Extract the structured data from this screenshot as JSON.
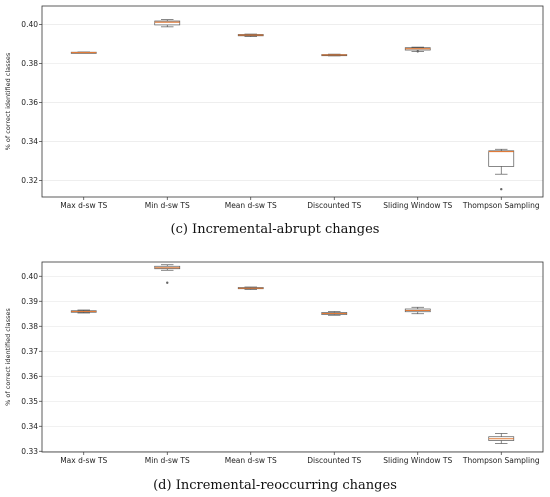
{
  "panels": [
    {
      "caption": "(c) Incremental-abrupt changes",
      "ylabel": "% of correct identified classes",
      "yticks": [
        "0.32",
        "0.34",
        "0.36",
        "0.38",
        "0.40"
      ],
      "ytick_values": [
        0.32,
        0.34,
        0.36,
        0.38,
        0.4
      ],
      "categories": [
        "Max d-sw TS",
        "Min d-sw TS",
        "Mean d-sw TS",
        "Discounted TS",
        "Sliding Window TS",
        "Thompson Sampling"
      ]
    },
    {
      "caption": "(d) Incremental-reoccurring changes",
      "ylabel": "% of correct identified classes",
      "yticks": [
        "0.33",
        "0.34",
        "0.35",
        "0.36",
        "0.37",
        "0.38",
        "0.39",
        "0.40"
      ],
      "ytick_values": [
        0.33,
        0.34,
        0.35,
        0.36,
        0.37,
        0.38,
        0.39,
        0.4
      ],
      "categories": [
        "Max d-sw TS",
        "Min d-sw TS",
        "Mean d-sw TS",
        "Discounted TS",
        "Sliding Window TS",
        "Thompson Sampling"
      ]
    }
  ],
  "colors": {
    "median": "#e07b39",
    "box": "#555555",
    "grid": "#e3e3e3"
  },
  "chart_data": [
    {
      "type": "box",
      "title": "(c) Incremental-abrupt changes",
      "xlabel": "",
      "ylabel": "% of correct identified classes",
      "ylim": [
        0.3115,
        0.4095
      ],
      "grid": true,
      "categories": [
        "Max d-sw TS",
        "Min d-sw TS",
        "Mean d-sw TS",
        "Discounted TS",
        "Sliding Window TS",
        "Thompson Sampling"
      ],
      "boxes": [
        {
          "whislo": 0.3853,
          "q1": 0.3855,
          "med": 0.3856,
          "q3": 0.3858,
          "whishi": 0.3859,
          "fliers": []
        },
        {
          "whislo": 0.3988,
          "q1": 0.3998,
          "med": 0.4012,
          "q3": 0.4018,
          "whishi": 0.4025,
          "fliers": []
        },
        {
          "whislo": 0.3938,
          "q1": 0.3942,
          "med": 0.3946,
          "q3": 0.3949,
          "whishi": 0.3951,
          "fliers": []
        },
        {
          "whislo": 0.3839,
          "q1": 0.3842,
          "med": 0.3844,
          "q3": 0.3846,
          "whishi": 0.3848,
          "fliers": []
        },
        {
          "whislo": 0.3862,
          "q1": 0.3869,
          "med": 0.3876,
          "q3": 0.3881,
          "whishi": 0.3884,
          "fliers": [
            0.3862
          ]
        },
        {
          "whislo": 0.3232,
          "q1": 0.3272,
          "med": 0.3348,
          "q3": 0.3352,
          "whishi": 0.336,
          "fliers": [
            0.3155
          ]
        }
      ]
    },
    {
      "type": "box",
      "title": "(d) Incremental-reoccurring changes",
      "xlabel": "",
      "ylabel": "% of correct identified classes",
      "ylim": [
        0.3297,
        0.4057
      ],
      "grid": true,
      "categories": [
        "Max d-sw TS",
        "Min d-sw TS",
        "Mean d-sw TS",
        "Discounted TS",
        "Sliding Window TS",
        "Thompson Sampling"
      ],
      "boxes": [
        {
          "whislo": 0.3853,
          "q1": 0.3856,
          "med": 0.3859,
          "q3": 0.3862,
          "whishi": 0.3865,
          "fliers": []
        },
        {
          "whislo": 0.4024,
          "q1": 0.403,
          "med": 0.4034,
          "q3": 0.404,
          "whishi": 0.4046,
          "fliers": [
            0.3974
          ]
        },
        {
          "whislo": 0.3947,
          "q1": 0.395,
          "med": 0.3952,
          "q3": 0.3955,
          "whishi": 0.3957,
          "fliers": []
        },
        {
          "whislo": 0.3844,
          "q1": 0.3847,
          "med": 0.3851,
          "q3": 0.3855,
          "whishi": 0.3859,
          "fliers": []
        },
        {
          "whislo": 0.385,
          "q1": 0.3858,
          "med": 0.3863,
          "q3": 0.3869,
          "whishi": 0.3876,
          "fliers": []
        },
        {
          "whislo": 0.3331,
          "q1": 0.3343,
          "med": 0.335,
          "q3": 0.3358,
          "whishi": 0.3371,
          "fliers": []
        }
      ]
    }
  ]
}
